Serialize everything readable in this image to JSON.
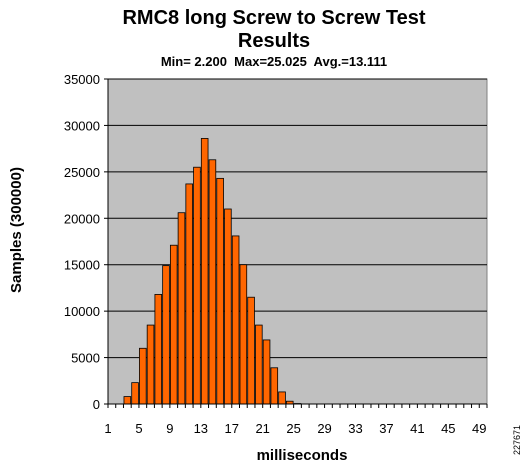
{
  "chart_data": {
    "type": "bar",
    "title": "RMC8 long Screw to Screw Test Results",
    "title_lines": [
      "RMC8 long Screw to Screw Test",
      "Results"
    ],
    "subtitle": "Min= 2.200  Max=25.025  Avg.=13.111",
    "xlabel": "milliseconds",
    "ylabel": "Samples (300000)",
    "ylim": [
      0,
      35000
    ],
    "y_ticks": [
      0,
      5000,
      10000,
      15000,
      20000,
      25000,
      30000,
      35000
    ],
    "xlim": [
      1,
      50
    ],
    "x_ticks": [
      1,
      5,
      9,
      13,
      17,
      21,
      25,
      29,
      33,
      37,
      41,
      45,
      49
    ],
    "grid": true,
    "legend": "none",
    "colors": {
      "bar_fill": "#ff6600",
      "bar_stroke": "#000000",
      "plot_bg": "#c0c0c0",
      "gridline": "#000000"
    },
    "x": [
      1,
      2,
      3,
      4,
      5,
      6,
      7,
      8,
      9,
      10,
      11,
      12,
      13,
      14,
      15,
      16,
      17,
      18,
      19,
      20,
      21,
      22,
      23,
      24,
      25,
      26,
      27,
      28,
      29,
      30,
      31,
      32,
      33,
      34,
      35,
      36,
      37,
      38,
      39,
      40,
      41,
      42,
      43,
      44,
      45,
      46,
      47,
      48,
      49
    ],
    "values": [
      0,
      0,
      800,
      2300,
      6000,
      8500,
      11800,
      14900,
      17100,
      20600,
      23700,
      25500,
      28600,
      26300,
      24300,
      21000,
      18100,
      15000,
      11500,
      8500,
      6900,
      3900,
      1300,
      300,
      50,
      0,
      0,
      0,
      0,
      0,
      0,
      0,
      0,
      0,
      0,
      0,
      0,
      0,
      0,
      0,
      0,
      0,
      0,
      0,
      0,
      0,
      0,
      0,
      0
    ]
  },
  "side_note": "227671"
}
